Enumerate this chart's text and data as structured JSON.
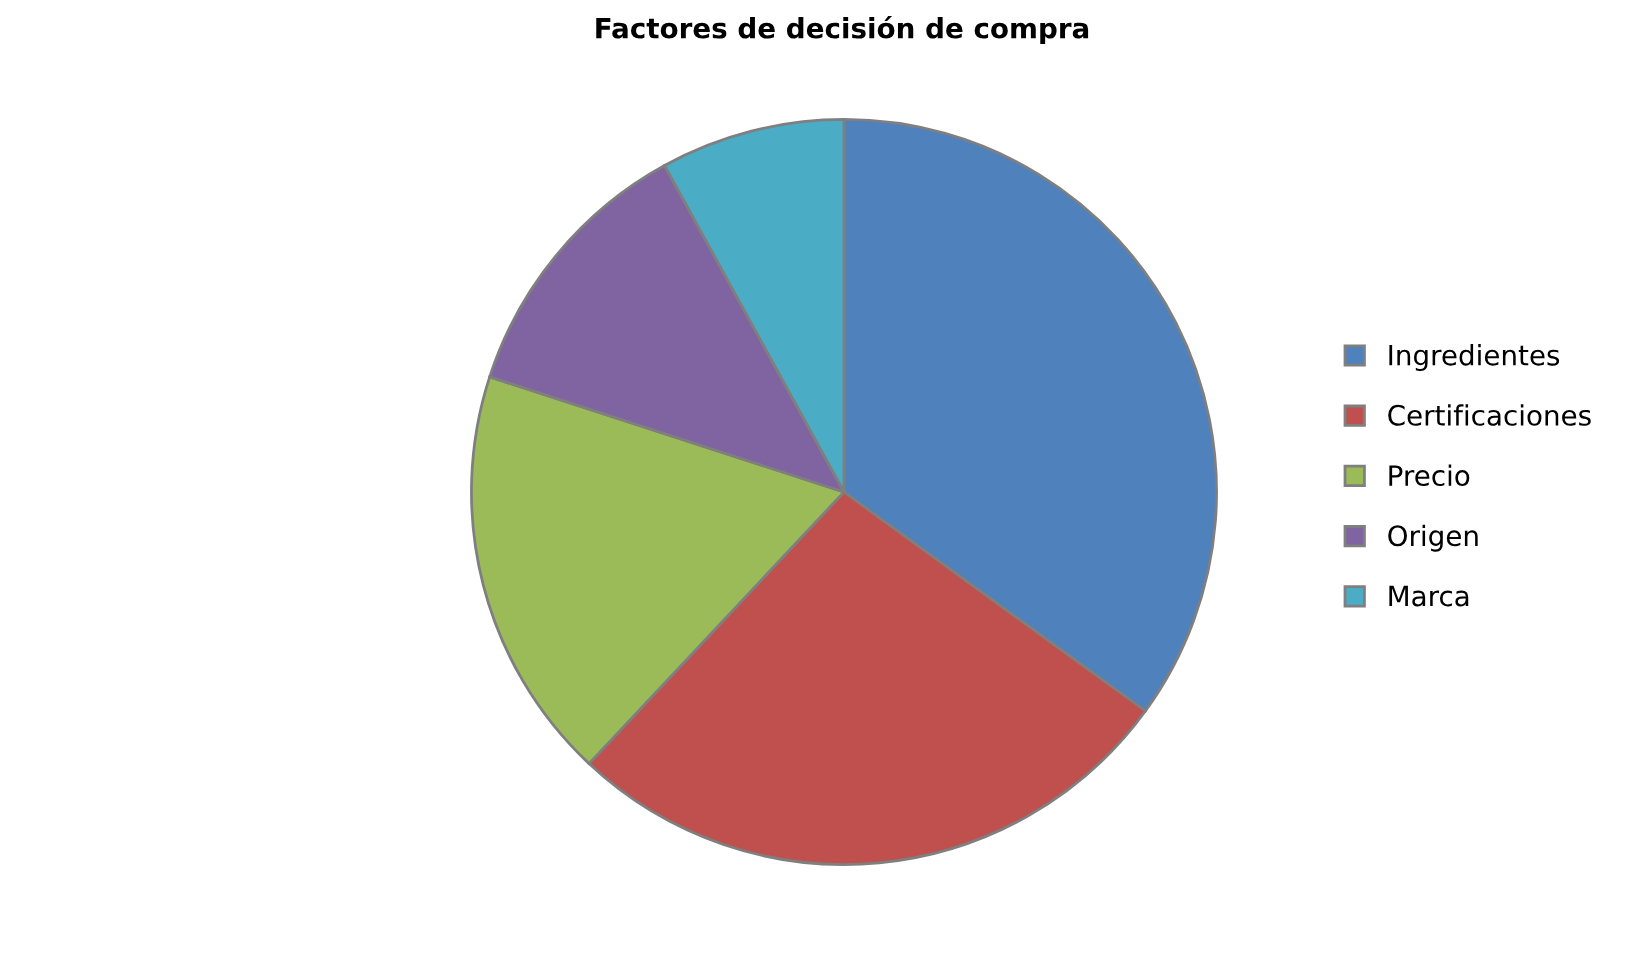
{
  "chart_data": {
    "type": "pie",
    "title": "Factores de decisión de compra",
    "categories": [
      "Ingredientes",
      "Certificaciones",
      "Precio",
      "Origen",
      "Marca"
    ],
    "values": [
      35,
      27,
      18,
      12,
      8
    ],
    "colors": [
      "#4f81bd",
      "#c0504d",
      "#9bbb59",
      "#8064a2",
      "#4bacc6"
    ],
    "legend": "right"
  }
}
